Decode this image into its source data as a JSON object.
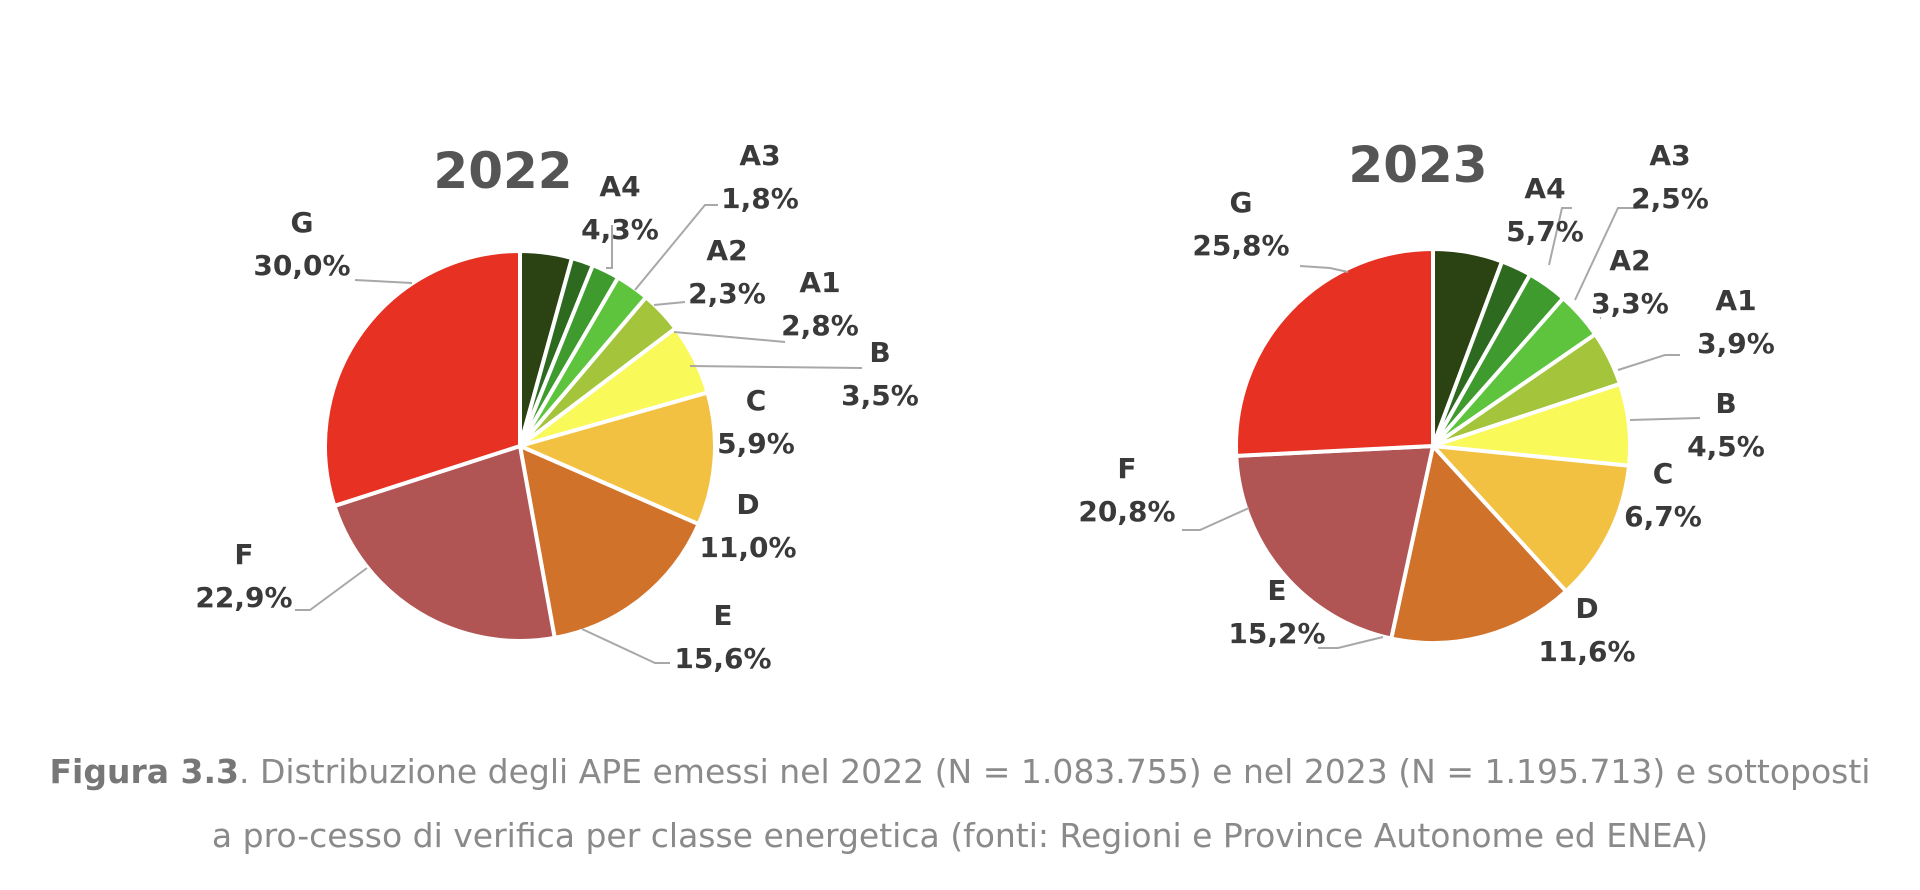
{
  "chart_data": [
    {
      "type": "pie",
      "title": "2022",
      "slices": [
        {
          "label": "A4",
          "value": 4.3,
          "text": "4,3%",
          "color": "#2b4212"
        },
        {
          "label": "A3",
          "value": 1.8,
          "text": "1,8%",
          "color": "#2d6a1f"
        },
        {
          "label": "A2",
          "value": 2.3,
          "text": "2,3%",
          "color": "#3f9b2e"
        },
        {
          "label": "A1",
          "value": 2.8,
          "text": "2,8%",
          "color": "#5ec43e"
        },
        {
          "label": "B",
          "value": 3.5,
          "text": "3,5%",
          "color": "#a4c43b"
        },
        {
          "label": "C",
          "value": 5.9,
          "text": "5,9%",
          "color": "#f9f95a"
        },
        {
          "label": "D",
          "value": 11.0,
          "text": "11,0%",
          "color": "#f2c142"
        },
        {
          "label": "E",
          "value": 15.6,
          "text": "15,6%",
          "color": "#d0722a"
        },
        {
          "label": "F",
          "value": 22.9,
          "text": "22,9%",
          "color": "#b05454"
        },
        {
          "label": "G",
          "value": 30.0,
          "text": "30,0%",
          "color": "#e63123"
        }
      ]
    },
    {
      "type": "pie",
      "title": "2023",
      "slices": [
        {
          "label": "A4",
          "value": 5.7,
          "text": "5,7%",
          "color": "#2b4212"
        },
        {
          "label": "A3",
          "value": 2.5,
          "text": "2,5%",
          "color": "#2d6a1f"
        },
        {
          "label": "A2",
          "value": 3.3,
          "text": "3,3%",
          "color": "#3f9b2e"
        },
        {
          "label": "A1",
          "value": 3.9,
          "text": "3,9%",
          "color": "#5ec43e"
        },
        {
          "label": "B",
          "value": 4.5,
          "text": "4,5%",
          "color": "#a4c43b"
        },
        {
          "label": "C",
          "value": 6.7,
          "text": "6,7%",
          "color": "#f9f95a"
        },
        {
          "label": "D",
          "value": 11.6,
          "text": "11,6%",
          "color": "#f2c142"
        },
        {
          "label": "E",
          "value": 15.2,
          "text": "15,2%",
          "color": "#d0722a"
        },
        {
          "label": "F",
          "value": 20.8,
          "text": "20,8%",
          "color": "#b05454"
        },
        {
          "label": "G",
          "value": 25.8,
          "text": "25,8%",
          "color": "#e63123"
        }
      ]
    }
  ],
  "caption": {
    "bold": "Figura 3.3",
    "text": ". Distribuzione degli APE emessi nel 2022 (N = 1.083.755) e nel 2023 (N = 1.195.713) e sottoposti a pro-­cesso di verifica per classe energetica (fonti: Regioni e Province Autonome ed ENEA)"
  }
}
